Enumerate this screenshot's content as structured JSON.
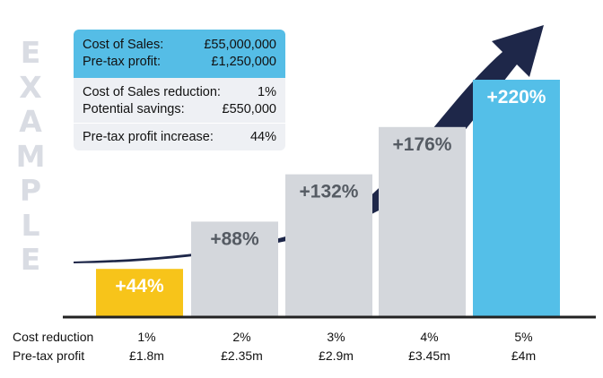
{
  "watermark": "EXAMPLE",
  "watermark_letters": [
    "E",
    "X",
    "A",
    "M",
    "P",
    "L",
    "E"
  ],
  "info": {
    "cost_of_sales_label": "Cost of Sales:",
    "cost_of_sales_value": "£55,000,000",
    "pretax_profit_label": "Pre-tax profit:",
    "pretax_profit_value": "£1,250,000",
    "reduction_label": "Cost of Sales reduction:",
    "reduction_value": "1%",
    "savings_label": "Potential savings:",
    "savings_value": "£550,000",
    "increase_label": "Pre-tax profit increase:",
    "increase_value": "44%"
  },
  "chart_data": {
    "type": "bar",
    "row_labels": [
      "Cost reduction",
      "Pre-tax profit"
    ],
    "categories": [
      "1%",
      "2%",
      "3%",
      "4%",
      "5%"
    ],
    "profits": [
      "£1.8m",
      "£2.35m",
      "£2.9m",
      "£3.45m",
      "£4m"
    ],
    "values": [
      44,
      88,
      132,
      176,
      220
    ],
    "value_labels": [
      "+44%",
      "+88%",
      "+132%",
      "+176%",
      "+220%"
    ],
    "bar_colors": [
      "#f7c41a",
      "#d4d7dc",
      "#d4d7dc",
      "#d4d7dc",
      "#54bfe8"
    ],
    "label_colors": [
      "#ffffff",
      "#555b63",
      "#555b63",
      "#555b63",
      "#ffffff"
    ],
    "ylim": [
      0,
      220
    ],
    "arrow_color": "#1e2749"
  }
}
